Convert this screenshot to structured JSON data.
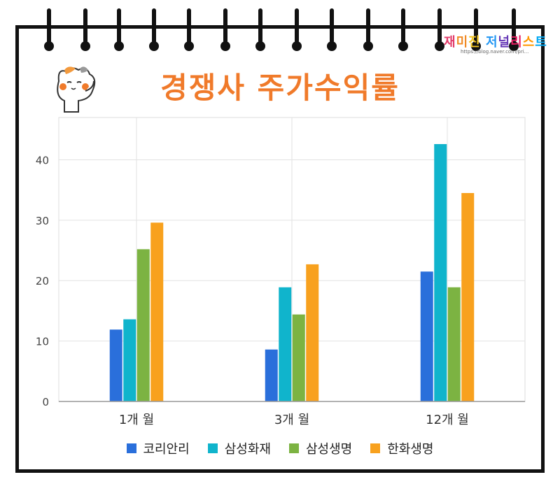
{
  "header": {
    "title": "경쟁사 주가수익률",
    "title_color": "#f07a2a",
    "brand": "재미진 저널리스트",
    "brand_url": "https://blog.naver.com/pri..."
  },
  "colors": {
    "border": "#111111",
    "grid": "#e2e2e2",
    "axis": "#999999"
  },
  "chart_data": {
    "type": "bar",
    "title": "경쟁사 주가수익률",
    "categories": [
      "1개 월",
      "3개 월",
      "12개 월"
    ],
    "series": [
      {
        "name": "코리안리",
        "color": "#2a6fdb",
        "values": [
          11.9,
          8.6,
          21.5
        ]
      },
      {
        "name": "삼성화재",
        "color": "#10b4cc",
        "values": [
          13.6,
          18.9,
          42.6
        ]
      },
      {
        "name": "삼성생명",
        "color": "#7cb342",
        "values": [
          25.2,
          14.4,
          18.9
        ]
      },
      {
        "name": "한화생명",
        "color": "#f8a11e",
        "values": [
          29.6,
          22.7,
          34.5
        ]
      }
    ],
    "yticks": [
      0,
      10,
      20,
      30,
      40
    ],
    "ylim": [
      0,
      47
    ],
    "xlabel": "",
    "ylabel": "",
    "grid": true,
    "legend": "bottom"
  }
}
